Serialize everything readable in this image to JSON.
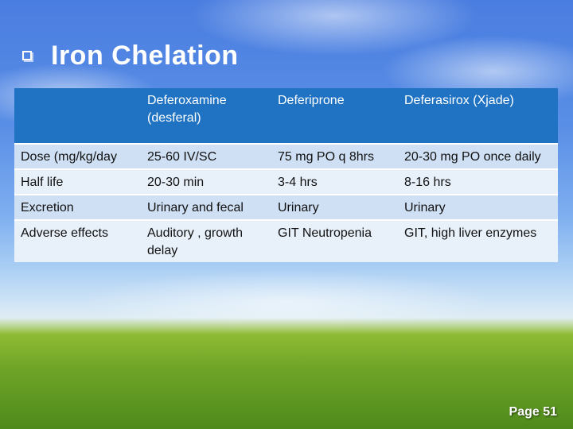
{
  "slide": {
    "title": "Iron Chelation",
    "page_label": "Page 51"
  },
  "table": {
    "headers": [
      "",
      "Deferoxamine (desferal)",
      "Deferiprone",
      "Deferasirox (Xjade)"
    ],
    "rows": [
      [
        "Dose (mg/kg/day",
        "25-60 IV/SC",
        "75 mg PO q 8hrs",
        "20-30 mg PO once daily"
      ],
      [
        "Half life",
        "20-30 min",
        "3-4 hrs",
        "8-16 hrs"
      ],
      [
        "Excretion",
        "Urinary and fecal",
        "Urinary",
        "Urinary"
      ],
      [
        "Adverse effects",
        "Auditory , growth delay",
        "GIT Neutropenia",
        "GIT, high liver enzymes"
      ]
    ]
  }
}
